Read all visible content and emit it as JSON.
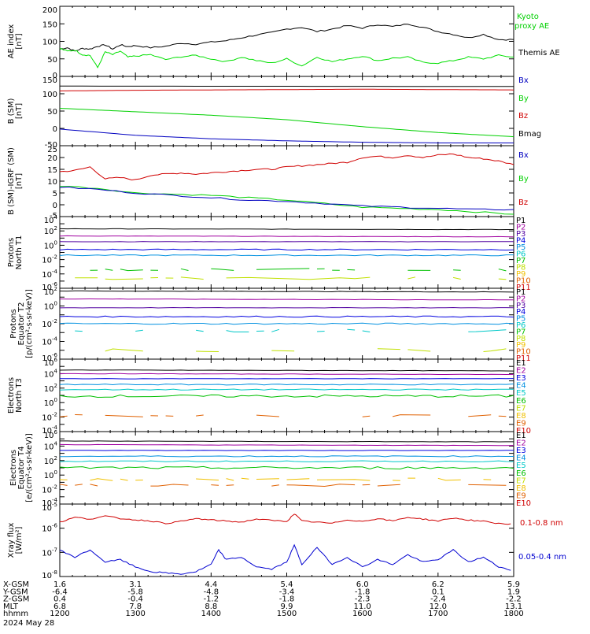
{
  "chart_data": [
    {
      "type": "line",
      "ylabel": "AE index [nT]",
      "ylim": [
        0,
        200
      ],
      "yticks": [
        "0",
        "50",
        "100",
        "150",
        "200"
      ],
      "log": false,
      "legend": [
        {
          "name": "Kyoto proxy AE",
          "color": "#00e000"
        },
        {
          "name": "Themis AE",
          "color": "#000000"
        }
      ],
      "series": [
        {
          "name": "Themis AE",
          "color": "#000000",
          "x": [
            0,
            0.1,
            0.2,
            0.3,
            0.4,
            0.5,
            0.6,
            0.7,
            0.8,
            0.9,
            1.0,
            1.2,
            1.4,
            1.6,
            1.8,
            2.0,
            2.2,
            2.4,
            2.6,
            2.8,
            3.0,
            3.2,
            3.4,
            3.6,
            3.8,
            4.0,
            4.2,
            4.4,
            4.6,
            4.8,
            5.0,
            5.2,
            5.4,
            5.6,
            5.8,
            6.0
          ],
          "values": [
            78,
            82,
            72,
            80,
            78,
            86,
            90,
            78,
            90,
            85,
            88,
            82,
            86,
            95,
            92,
            98,
            102,
            110,
            118,
            125,
            135,
            140,
            128,
            135,
            145,
            138,
            148,
            142,
            150,
            140,
            128,
            120,
            110,
            120,
            105,
            105
          ]
        },
        {
          "name": "Kyoto proxy AE",
          "color": "#00e000",
          "x": [
            0,
            0.1,
            0.2,
            0.3,
            0.4,
            0.5,
            0.6,
            0.7,
            0.8,
            0.9,
            1.0,
            1.2,
            1.4,
            1.6,
            1.8,
            2.0,
            2.2,
            2.4,
            2.6,
            2.8,
            3.0,
            3.2,
            3.4,
            3.6,
            3.8,
            4.0,
            4.2,
            4.4,
            4.6,
            4.8,
            5.0,
            5.2,
            5.4,
            5.6,
            5.8,
            6.0
          ],
          "values": [
            80,
            72,
            75,
            62,
            60,
            25,
            70,
            62,
            72,
            55,
            58,
            62,
            48,
            56,
            60,
            50,
            42,
            55,
            45,
            38,
            50,
            30,
            55,
            42,
            50,
            58,
            45,
            52,
            55,
            40,
            38,
            45,
            55,
            50,
            60,
            55
          ]
        }
      ]
    },
    {
      "type": "line",
      "ylabel": "B (SM) [nT]",
      "ylim": [
        -50,
        150
      ],
      "yticks": [
        "-50",
        "0",
        "50",
        "100",
        "150"
      ],
      "log": false,
      "legend": [
        {
          "name": "Bx",
          "color": "#0000c0"
        },
        {
          "name": "By",
          "color": "#00d000"
        },
        {
          "name": "Bz",
          "color": "#d00000"
        },
        {
          "name": "Bmag",
          "color": "#000000"
        }
      ],
      "series": [
        {
          "name": "Bmag",
          "color": "#000000",
          "x": [
            0,
            6
          ],
          "values": [
            122,
            121
          ]
        },
        {
          "name": "Bz",
          "color": "#d00000",
          "x": [
            0,
            1,
            2,
            3,
            4,
            5,
            6
          ],
          "values": [
            108,
            110,
            111,
            112,
            113,
            112,
            111
          ]
        },
        {
          "name": "By",
          "color": "#00d000",
          "x": [
            0,
            1,
            2,
            3,
            4,
            5,
            6
          ],
          "values": [
            58,
            48,
            38,
            25,
            5,
            -12,
            -24
          ]
        },
        {
          "name": "Bx",
          "color": "#0000c0",
          "x": [
            0,
            1,
            2,
            3,
            4,
            5,
            6
          ],
          "values": [
            -2,
            -20,
            -30,
            -36,
            -40,
            -42,
            -42
          ]
        }
      ]
    },
    {
      "type": "line",
      "ylabel": "B (SM)-IGRF (SM) [nT]",
      "ylim": [
        -5,
        25
      ],
      "yticks": [
        "-5",
        "0",
        "5",
        "10",
        "15",
        "20",
        "25"
      ],
      "log": false,
      "legend": [
        {
          "name": "Bx",
          "color": "#0000c0"
        },
        {
          "name": "By",
          "color": "#00d000"
        },
        {
          "name": "Bz",
          "color": "#d00000"
        }
      ],
      "series": [
        {
          "name": "Bz",
          "color": "#d00000",
          "x": [
            0,
            0.2,
            0.4,
            0.6,
            0.8,
            1.0,
            1.2,
            1.4,
            1.6,
            1.8,
            2.0,
            2.2,
            2.4,
            2.6,
            2.8,
            3.0,
            3.2,
            3.4,
            3.6,
            3.8,
            4.0,
            4.2,
            4.4,
            4.6,
            4.8,
            5.0,
            5.2,
            5.4,
            5.6,
            5.8,
            6.0
          ],
          "values": [
            14,
            14.5,
            16,
            11,
            11.5,
            10.5,
            12.5,
            13,
            13.5,
            13,
            13.5,
            14,
            14.5,
            15,
            15,
            16,
            16.5,
            17,
            17.5,
            18,
            20,
            20.5,
            20,
            21,
            20,
            21,
            21.5,
            20,
            19.5,
            18.5,
            17
          ]
        },
        {
          "name": "By",
          "color": "#00d000",
          "x": [
            0,
            0.5,
            1.0,
            1.5,
            2.0,
            2.5,
            3.0,
            3.5,
            4.0,
            4.5,
            5.0,
            5.5,
            6.0
          ],
          "values": [
            8,
            7,
            5,
            4.5,
            4,
            3,
            2,
            0.5,
            -1,
            -1.5,
            -2,
            -3,
            -4
          ]
        },
        {
          "name": "Bx",
          "color": "#0000c0",
          "x": [
            0,
            0.5,
            1.0,
            1.5,
            2.0,
            2.5,
            3.0,
            3.5,
            4.0,
            4.5,
            5.0,
            5.5,
            6.0
          ],
          "values": [
            7.5,
            6.5,
            5,
            4,
            3,
            2,
            1.5,
            0.5,
            -0.5,
            -1,
            -1.5,
            -2,
            -2
          ]
        }
      ]
    },
    {
      "type": "line",
      "ylabel": "Protons North T1",
      "log": true,
      "ylim_exp": [
        -6,
        4
      ],
      "yticks": [
        "10^-6",
        "10^-4",
        "10^-2",
        "10^0",
        "10^2",
        "10^4"
      ],
      "channels": [
        "P1",
        "P2",
        "P3",
        "P4",
        "P5",
        "P6",
        "P7",
        "P8",
        "P9",
        "P10",
        "P11"
      ],
      "channel_colors": [
        "#000000",
        "#a000a0",
        "#5000a0",
        "#0000e0",
        "#0090e0",
        "#00c8c8",
        "#00c000",
        "#c0e000",
        "#f0c000",
        "#e06000",
        "#d00000"
      ],
      "levels_exp": [
        2.3,
        1.3,
        0.5,
        -0.6,
        -1.4,
        -2.5,
        -3.4,
        -4.6
      ]
    },
    {
      "type": "line",
      "ylabel": "Protons Equator T2 [p/(cm^2-s-sr-keV)]",
      "log": true,
      "ylim_exp": [
        -6,
        2
      ],
      "yticks": [
        "10^-6",
        "10^-4",
        "10^-2",
        "10^0",
        "10^2"
      ],
      "channels": [
        "P1",
        "P2",
        "P3",
        "P4",
        "P5",
        "P6",
        "P7",
        "P8",
        "P9",
        "P10",
        "P11"
      ],
      "channel_colors": [
        "#000000",
        "#a000a0",
        "#5000a0",
        "#0000e0",
        "#0090e0",
        "#00c8c8",
        "#00c000",
        "#c0e000",
        "#f0c000",
        "#e06000",
        "#d00000"
      ],
      "levels_exp": [
        1.7,
        0.8,
        -0.2,
        -1.2,
        -2.0,
        -2.8,
        -4.0,
        -5.0
      ]
    },
    {
      "type": "line",
      "ylabel": "Electrons North T3",
      "log": true,
      "ylim_exp": [
        -4,
        6
      ],
      "yticks": [
        "10^-4",
        "10^-2",
        "10^0",
        "10^2",
        "10^4",
        "10^6"
      ],
      "channels": [
        "E1",
        "E2",
        "E3",
        "E4",
        "E5",
        "E6",
        "E7",
        "E8",
        "E9",
        "E10"
      ],
      "channel_colors": [
        "#000000",
        "#a000a0",
        "#0000e0",
        "#0090e0",
        "#00c8c8",
        "#00c000",
        "#c0e000",
        "#f0c000",
        "#e06000",
        "#d00000"
      ],
      "levels_exp": [
        4.5,
        4.0,
        3.3,
        2.5,
        1.8,
        0.9,
        0.0,
        -0.8,
        -1.8
      ]
    },
    {
      "type": "line",
      "ylabel": "Electrons Equator T4 [e/(cm^2-s-sr-keV)]",
      "log": true,
      "ylim_exp": [
        -4,
        6
      ],
      "yticks": [
        "10^-4",
        "10^-2",
        "10^0",
        "10^2",
        "10^4",
        "10^6"
      ],
      "channels": [
        "E1",
        "E2",
        "E3",
        "E4",
        "E5",
        "E6",
        "E7",
        "E8",
        "E9",
        "E10"
      ],
      "channel_colors": [
        "#000000",
        "#a000a0",
        "#0000e0",
        "#0090e0",
        "#00c8c8",
        "#00c000",
        "#c0e000",
        "#f0c000",
        "#e06000",
        "#d00000"
      ],
      "levels_exp": [
        4.7,
        4.2,
        3.4,
        2.6,
        1.9,
        1.0,
        0.1,
        -0.6,
        -1.4
      ]
    },
    {
      "type": "line",
      "ylabel": "Xray flux [W/m^2]",
      "log": true,
      "ylim_exp": [
        -8,
        -5
      ],
      "yticks": [
        "10^-8",
        "10^-7",
        "10^-6",
        "10^-5"
      ],
      "legend": [
        {
          "name": "0.1-0.8 nm",
          "color": "#d00000"
        },
        {
          "name": "0.05-0.4 nm",
          "color": "#0000d0"
        }
      ],
      "series": [
        {
          "name": "0.1-0.8 nm",
          "color": "#d00000",
          "x": [
            0,
            0.2,
            0.4,
            0.6,
            0.8,
            1.0,
            1.2,
            1.4,
            1.6,
            1.8,
            2.0,
            2.2,
            2.4,
            2.6,
            2.8,
            3.0,
            3.1,
            3.2,
            3.4,
            3.6,
            3.8,
            4.0,
            4.2,
            4.4,
            4.6,
            4.8,
            5.0,
            5.2,
            5.4,
            5.6,
            5.8,
            6.0
          ],
          "values": [
            -5.75,
            -5.55,
            -5.62,
            -5.5,
            -5.6,
            -5.65,
            -5.7,
            -5.8,
            -5.72,
            -5.6,
            -5.66,
            -5.7,
            -5.75,
            -5.62,
            -5.68,
            -5.72,
            -5.4,
            -5.7,
            -5.75,
            -5.8,
            -5.65,
            -5.72,
            -5.6,
            -5.7,
            -5.55,
            -5.62,
            -5.7,
            -5.58,
            -5.66,
            -5.72,
            -5.8,
            -5.85
          ]
        },
        {
          "name": "0.05-0.4 nm",
          "color": "#0000d0",
          "x": [
            0,
            0.2,
            0.4,
            0.6,
            0.8,
            1.0,
            1.2,
            1.4,
            1.6,
            1.8,
            2.0,
            2.1,
            2.2,
            2.4,
            2.6,
            2.8,
            3.0,
            3.1,
            3.2,
            3.4,
            3.6,
            3.8,
            4.0,
            4.2,
            4.4,
            4.6,
            4.8,
            5.0,
            5.2,
            5.4,
            5.6,
            5.8,
            6.0
          ],
          "values": [
            -6.9,
            -7.2,
            -6.9,
            -7.4,
            -7.3,
            -7.6,
            -7.8,
            -7.85,
            -7.9,
            -7.8,
            -7.5,
            -6.9,
            -7.3,
            -7.2,
            -7.6,
            -7.7,
            -7.4,
            -6.7,
            -7.5,
            -6.8,
            -7.5,
            -7.2,
            -7.6,
            -7.3,
            -7.5,
            -7.1,
            -7.4,
            -7.3,
            -6.9,
            -7.4,
            -7.2,
            -7.6,
            -7.75
          ]
        }
      ]
    }
  ],
  "left_labels": {
    "p1": [
      "AE index",
      "[nT]"
    ],
    "p2": [
      "B (SM)",
      "[nT]"
    ],
    "p3": [
      "B (SM)-IGRF (SM)",
      "[nT]"
    ],
    "p4": [
      "Protons",
      "North T1"
    ],
    "p5": [
      "Protons",
      "Equator T2",
      "[p/(cm²-s-sr-keV)]"
    ],
    "p6": [
      "Electrons",
      "North T3"
    ],
    "p7": [
      "Electrons",
      "Equator T4",
      "[e/(cm²-s-sr-keV)]"
    ],
    "p8": [
      "Xray flux",
      "[W/m²]"
    ]
  },
  "legend_text": {
    "kyoto_1": "Kyoto",
    "kyoto_2": "proxy AE",
    "themis": "Themis AE",
    "xray_1": "0.1-0.8 nm",
    "xray_2": "0.05-0.4 nm"
  },
  "ephemeris": {
    "row_labels": [
      "X-GSM",
      "Y-GSM",
      "Z-GSM",
      "MLT",
      "hhmm"
    ],
    "columns": [
      [
        "1.6",
        "-6.4",
        "0.4",
        "6.8",
        "1200"
      ],
      [
        "3.1",
        "-5.8",
        "-0.4",
        "7.8",
        "1300"
      ],
      [
        "4.4",
        "-4.8",
        "-1.2",
        "8.8",
        "1400"
      ],
      [
        "5.4",
        "-3.4",
        "-1.8",
        "9.9",
        "1500"
      ],
      [
        "6.0",
        "-1.8",
        "-2.3",
        "11.0",
        "1600"
      ],
      [
        "6.2",
        "0.1",
        "-2.4",
        "12.0",
        "1700"
      ],
      [
        "5.9",
        "1.9",
        "-2.2",
        "13.1",
        "1800"
      ]
    ],
    "date": "2024 May 28"
  }
}
